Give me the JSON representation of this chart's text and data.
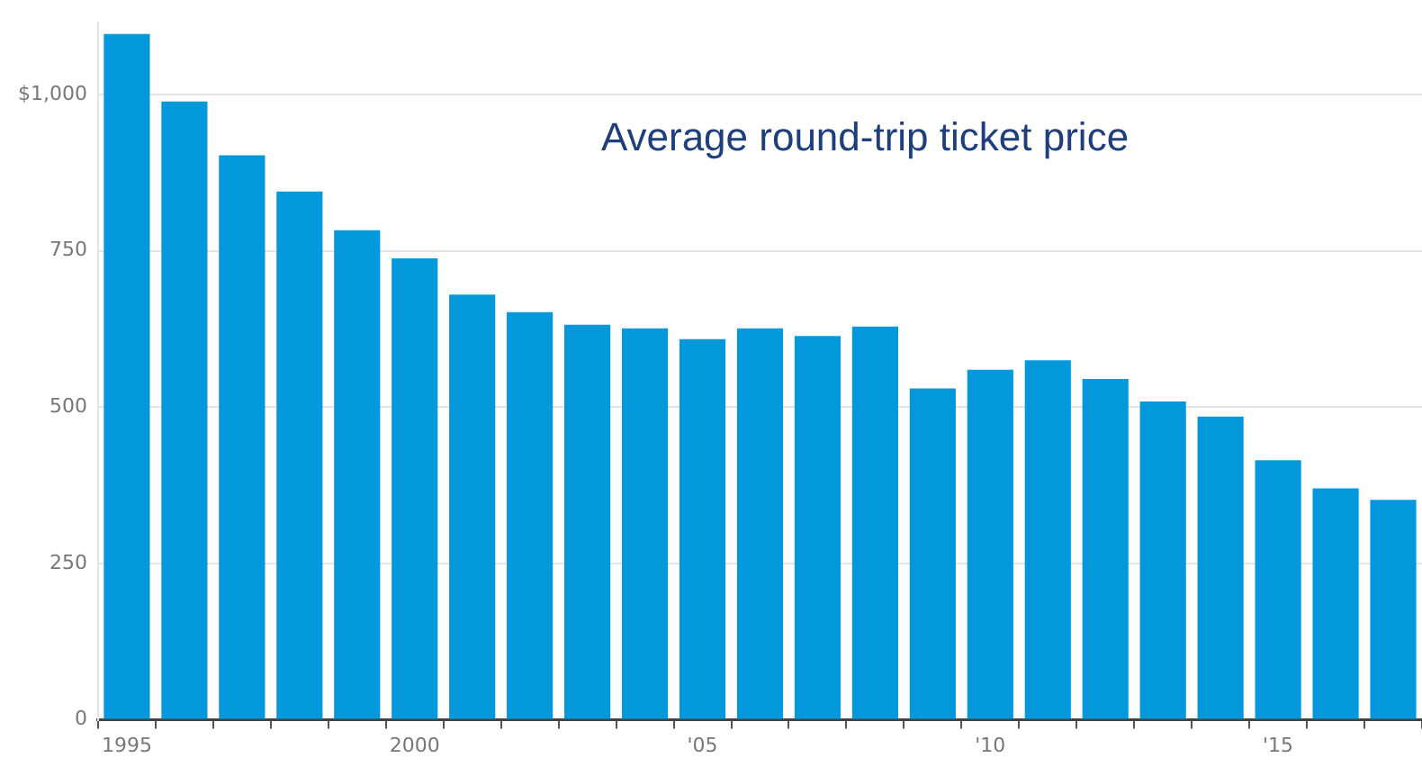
{
  "chart_data": {
    "type": "bar",
    "title": "Average round-trip ticket price",
    "categories": [
      "1995",
      null,
      null,
      null,
      null,
      "2000",
      null,
      null,
      null,
      null,
      "'05",
      null,
      null,
      null,
      null,
      "'10",
      null,
      null,
      null,
      null,
      "'15",
      null,
      null
    ],
    "values": [
      1097,
      989,
      903,
      845,
      783,
      738,
      680,
      652,
      632,
      626,
      609,
      626,
      614,
      629,
      530,
      560,
      575,
      545,
      509,
      485,
      415,
      370,
      352
    ],
    "color": "#0397db",
    "ylim": [
      0,
      1115
    ],
    "yticks": [
      0,
      250,
      500,
      750,
      {
        "value": 1000,
        "label": "$1,000"
      }
    ],
    "grid": "y"
  }
}
